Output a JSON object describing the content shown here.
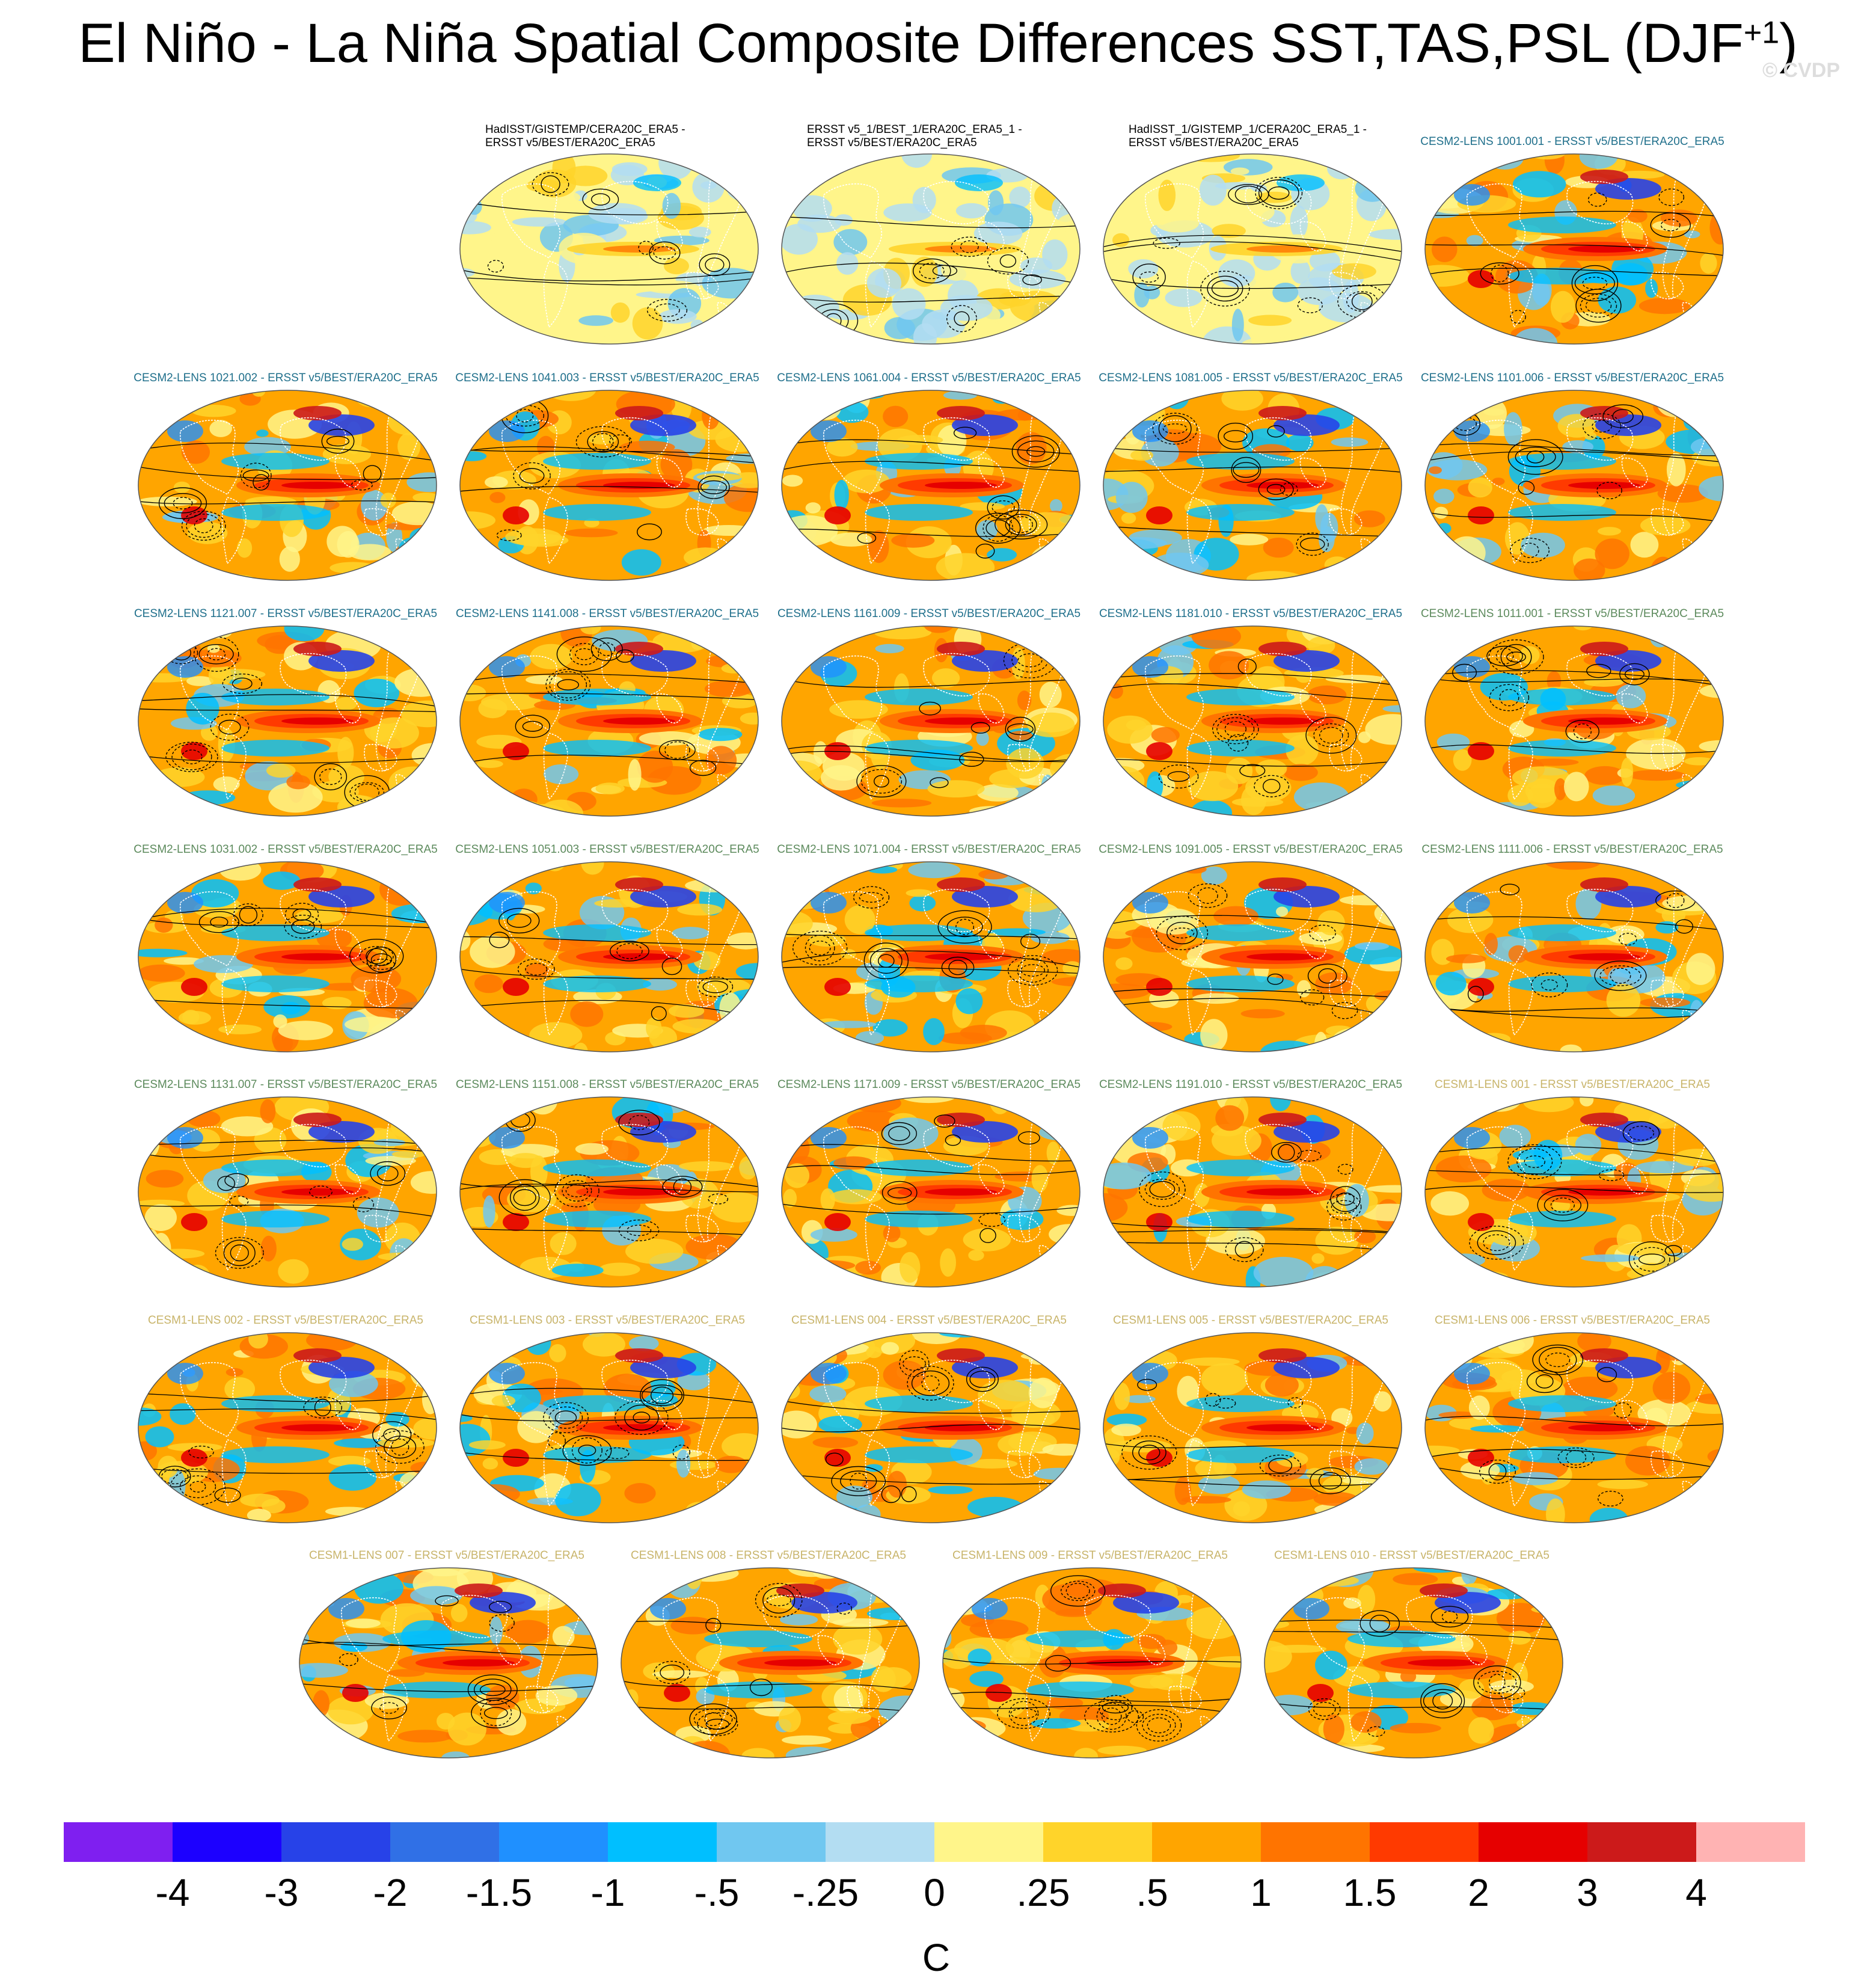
{
  "title": "El Niño - La Niña Spatial Composite Differences SST,TAS,PSL (DJF",
  "title_superscript": "+1",
  "title_close": ")",
  "watermark": "© CVDP",
  "panel_colors": {
    "obs": "#000000",
    "cesm2_a": "#1f6f8b",
    "cesm2_b": "#5c8a5c",
    "cesm1": "#c8b46a"
  },
  "rows": [
    [
      {
        "group": "obs",
        "label_lines": [
          "HadISST/GISTEMP/CERA20C_ERA5 -",
          "ERSST v5/BEST/ERA20C_ERA5"
        ],
        "strength": 0.3
      },
      {
        "group": "obs",
        "label_lines": [
          "ERSST v5_1/BEST_1/ERA20C_ERA5_1 -",
          "ERSST v5/BEST/ERA20C_ERA5"
        ],
        "strength": 0.35
      },
      {
        "group": "obs",
        "label_lines": [
          "HadISST_1/GISTEMP_1/CERA20C_ERA5_1 -",
          "ERSST v5/BEST/ERA20C_ERA5"
        ],
        "strength": 0.3
      },
      {
        "group": "cesm2_a",
        "label_lines": [
          "CESM2-LENS 1001.001 - ERSST v5/BEST/ERA20C_ERA5"
        ],
        "strength": 1
      }
    ],
    [
      {
        "group": "cesm2_a",
        "label_lines": [
          "CESM2-LENS 1021.002 - ERSST v5/BEST/ERA20C_ERA5"
        ],
        "strength": 1
      },
      {
        "group": "cesm2_a",
        "label_lines": [
          "CESM2-LENS 1041.003 - ERSST v5/BEST/ERA20C_ERA5"
        ],
        "strength": 1
      },
      {
        "group": "cesm2_a",
        "label_lines": [
          "CESM2-LENS 1061.004 - ERSST v5/BEST/ERA20C_ERA5"
        ],
        "strength": 1
      },
      {
        "group": "cesm2_a",
        "label_lines": [
          "CESM2-LENS 1081.005 - ERSST v5/BEST/ERA20C_ERA5"
        ],
        "strength": 1
      },
      {
        "group": "cesm2_a",
        "label_lines": [
          "CESM2-LENS 1101.006 - ERSST v5/BEST/ERA20C_ERA5"
        ],
        "strength": 1
      }
    ],
    [
      {
        "group": "cesm2_a",
        "label_lines": [
          "CESM2-LENS 1121.007 - ERSST v5/BEST/ERA20C_ERA5"
        ],
        "strength": 1
      },
      {
        "group": "cesm2_a",
        "label_lines": [
          "CESM2-LENS 1141.008 - ERSST v5/BEST/ERA20C_ERA5"
        ],
        "strength": 1
      },
      {
        "group": "cesm2_a",
        "label_lines": [
          "CESM2-LENS 1161.009 - ERSST v5/BEST/ERA20C_ERA5"
        ],
        "strength": 1
      },
      {
        "group": "cesm2_a",
        "label_lines": [
          "CESM2-LENS 1181.010 - ERSST v5/BEST/ERA20C_ERA5"
        ],
        "strength": 1
      },
      {
        "group": "cesm2_b",
        "label_lines": [
          "CESM2-LENS 1011.001 - ERSST v5/BEST/ERA20C_ERA5"
        ],
        "strength": 1
      }
    ],
    [
      {
        "group": "cesm2_b",
        "label_lines": [
          "CESM2-LENS 1031.002 - ERSST v5/BEST/ERA20C_ERA5"
        ],
        "strength": 1
      },
      {
        "group": "cesm2_b",
        "label_lines": [
          "CESM2-LENS 1051.003 - ERSST v5/BEST/ERA20C_ERA5"
        ],
        "strength": 1
      },
      {
        "group": "cesm2_b",
        "label_lines": [
          "CESM2-LENS 1071.004 - ERSST v5/BEST/ERA20C_ERA5"
        ],
        "strength": 1
      },
      {
        "group": "cesm2_b",
        "label_lines": [
          "CESM2-LENS 1091.005 - ERSST v5/BEST/ERA20C_ERA5"
        ],
        "strength": 1
      },
      {
        "group": "cesm2_b",
        "label_lines": [
          "CESM2-LENS 1111.006 - ERSST v5/BEST/ERA20C_ERA5"
        ],
        "strength": 1
      }
    ],
    [
      {
        "group": "cesm2_b",
        "label_lines": [
          "CESM2-LENS 1131.007 - ERSST v5/BEST/ERA20C_ERA5"
        ],
        "strength": 1
      },
      {
        "group": "cesm2_b",
        "label_lines": [
          "CESM2-LENS 1151.008 - ERSST v5/BEST/ERA20C_ERA5"
        ],
        "strength": 1
      },
      {
        "group": "cesm2_b",
        "label_lines": [
          "CESM2-LENS 1171.009 - ERSST v5/BEST/ERA20C_ERA5"
        ],
        "strength": 1
      },
      {
        "group": "cesm2_b",
        "label_lines": [
          "CESM2-LENS 1191.010 - ERSST v5/BEST/ERA20C_ERA5"
        ],
        "strength": 1
      },
      {
        "group": "cesm1",
        "label_lines": [
          "CESM1-LENS 001 - ERSST v5/BEST/ERA20C_ERA5"
        ],
        "strength": 1
      }
    ],
    [
      {
        "group": "cesm1",
        "label_lines": [
          "CESM1-LENS 002 - ERSST v5/BEST/ERA20C_ERA5"
        ],
        "strength": 1
      },
      {
        "group": "cesm1",
        "label_lines": [
          "CESM1-LENS 003 - ERSST v5/BEST/ERA20C_ERA5"
        ],
        "strength": 1
      },
      {
        "group": "cesm1",
        "label_lines": [
          "CESM1-LENS 004 - ERSST v5/BEST/ERA20C_ERA5"
        ],
        "strength": 1
      },
      {
        "group": "cesm1",
        "label_lines": [
          "CESM1-LENS 005 - ERSST v5/BEST/ERA20C_ERA5"
        ],
        "strength": 1
      },
      {
        "group": "cesm1",
        "label_lines": [
          "CESM1-LENS 006 - ERSST v5/BEST/ERA20C_ERA5"
        ],
        "strength": 1
      }
    ],
    [
      {
        "group": "cesm1",
        "label_lines": [
          "CESM1-LENS 007 - ERSST v5/BEST/ERA20C_ERA5"
        ],
        "strength": 1
      },
      {
        "group": "cesm1",
        "label_lines": [
          "CESM1-LENS 008 - ERSST v5/BEST/ERA20C_ERA5"
        ],
        "strength": 1
      },
      {
        "group": "cesm1",
        "label_lines": [
          "CESM1-LENS 009 - ERSST v5/BEST/ERA20C_ERA5"
        ],
        "strength": 1
      },
      {
        "group": "cesm1",
        "label_lines": [
          "CESM1-LENS 010 - ERSST v5/BEST/ERA20C_ERA5"
        ],
        "strength": 1
      }
    ]
  ],
  "colorbar": {
    "colors": [
      "#7f1ff0",
      "#1c00ff",
      "#2742e8",
      "#3070e6",
      "#1f90ff",
      "#00bfff",
      "#70c7f0",
      "#b3ddf2",
      "#fff58a",
      "#ffd42a",
      "#ffa500",
      "#ff7400",
      "#ff3a00",
      "#e60000",
      "#cc1a1a",
      "#ffb3b3"
    ],
    "labels": [
      "-4",
      "-3",
      "-2",
      "-1.5",
      "-1",
      "-.5",
      "-.25",
      "0",
      ".25",
      ".5",
      "1",
      "1.5",
      "2",
      "3",
      "4"
    ],
    "units": "C"
  }
}
